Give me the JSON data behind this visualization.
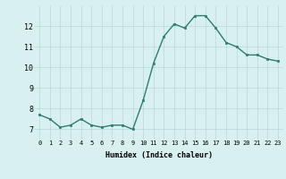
{
  "x": [
    0,
    1,
    2,
    3,
    4,
    5,
    6,
    7,
    8,
    9,
    10,
    11,
    12,
    13,
    14,
    15,
    16,
    17,
    18,
    19,
    20,
    21,
    22,
    23
  ],
  "y": [
    7.7,
    7.5,
    7.1,
    7.2,
    7.5,
    7.2,
    7.1,
    7.2,
    7.2,
    7.0,
    8.4,
    10.2,
    11.5,
    12.1,
    11.9,
    12.5,
    12.5,
    11.9,
    11.2,
    11.0,
    10.6,
    10.6,
    10.4,
    10.3
  ],
  "xlabel": "Humidex (Indice chaleur)",
  "xlim": [
    -0.5,
    23.5
  ],
  "ylim": [
    6.5,
    13.0
  ],
  "yticks": [
    7,
    8,
    9,
    10,
    11,
    12
  ],
  "xticks": [
    0,
    1,
    2,
    3,
    4,
    5,
    6,
    7,
    8,
    9,
    10,
    11,
    12,
    13,
    14,
    15,
    16,
    17,
    18,
    19,
    20,
    21,
    22,
    23
  ],
  "line_color": "#2e7d6e",
  "marker": "s",
  "marker_size": 2.0,
  "line_width": 1.0,
  "bg_color": "#d8f0f0",
  "grid_color": "#b8d8d8",
  "xlabel_fontsize": 6.0,
  "xtick_fontsize": 5.0,
  "ytick_fontsize": 6.0
}
